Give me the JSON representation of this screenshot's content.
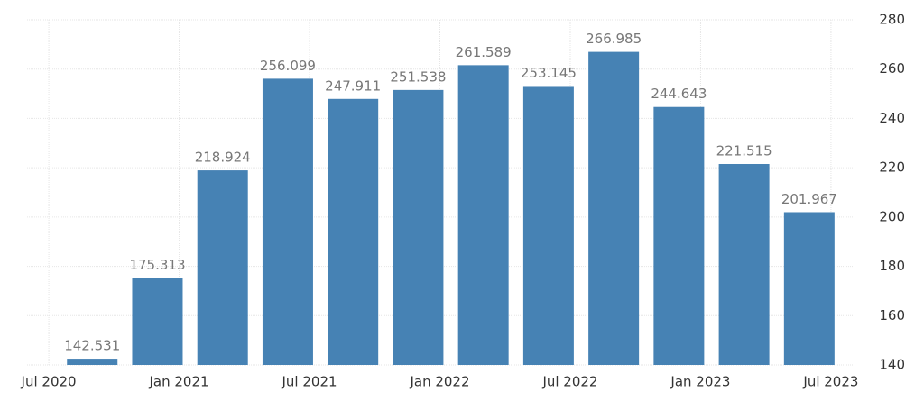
{
  "chart_data": {
    "type": "bar",
    "x": [
      "2020-09",
      "2020-12",
      "2021-03",
      "2021-06",
      "2021-09",
      "2021-12",
      "2022-03",
      "2022-06",
      "2022-09",
      "2022-12",
      "2023-03",
      "2023-06"
    ],
    "values": [
      142.531,
      175.313,
      218.924,
      256.099,
      247.911,
      251.538,
      261.589,
      253.145,
      266.985,
      244.643,
      221.515,
      201.967
    ],
    "color": "#4682b4",
    "xlim": [
      "2020-06",
      "2023-08"
    ],
    "xticks": [
      {
        "value": "2020-07",
        "label": "Jul 2020"
      },
      {
        "value": "2021-01",
        "label": "Jan 2021"
      },
      {
        "value": "2021-07",
        "label": "Jul 2021"
      },
      {
        "value": "2022-01",
        "label": "Jan 2022"
      },
      {
        "value": "2022-07",
        "label": "Jul 2022"
      },
      {
        "value": "2023-01",
        "label": "Jan 2023"
      },
      {
        "value": "2023-07",
        "label": "Jul 2023"
      }
    ],
    "ylim": [
      140,
      280
    ],
    "yticks": [
      140,
      160,
      180,
      200,
      220,
      240,
      260,
      280
    ],
    "grid": true
  }
}
